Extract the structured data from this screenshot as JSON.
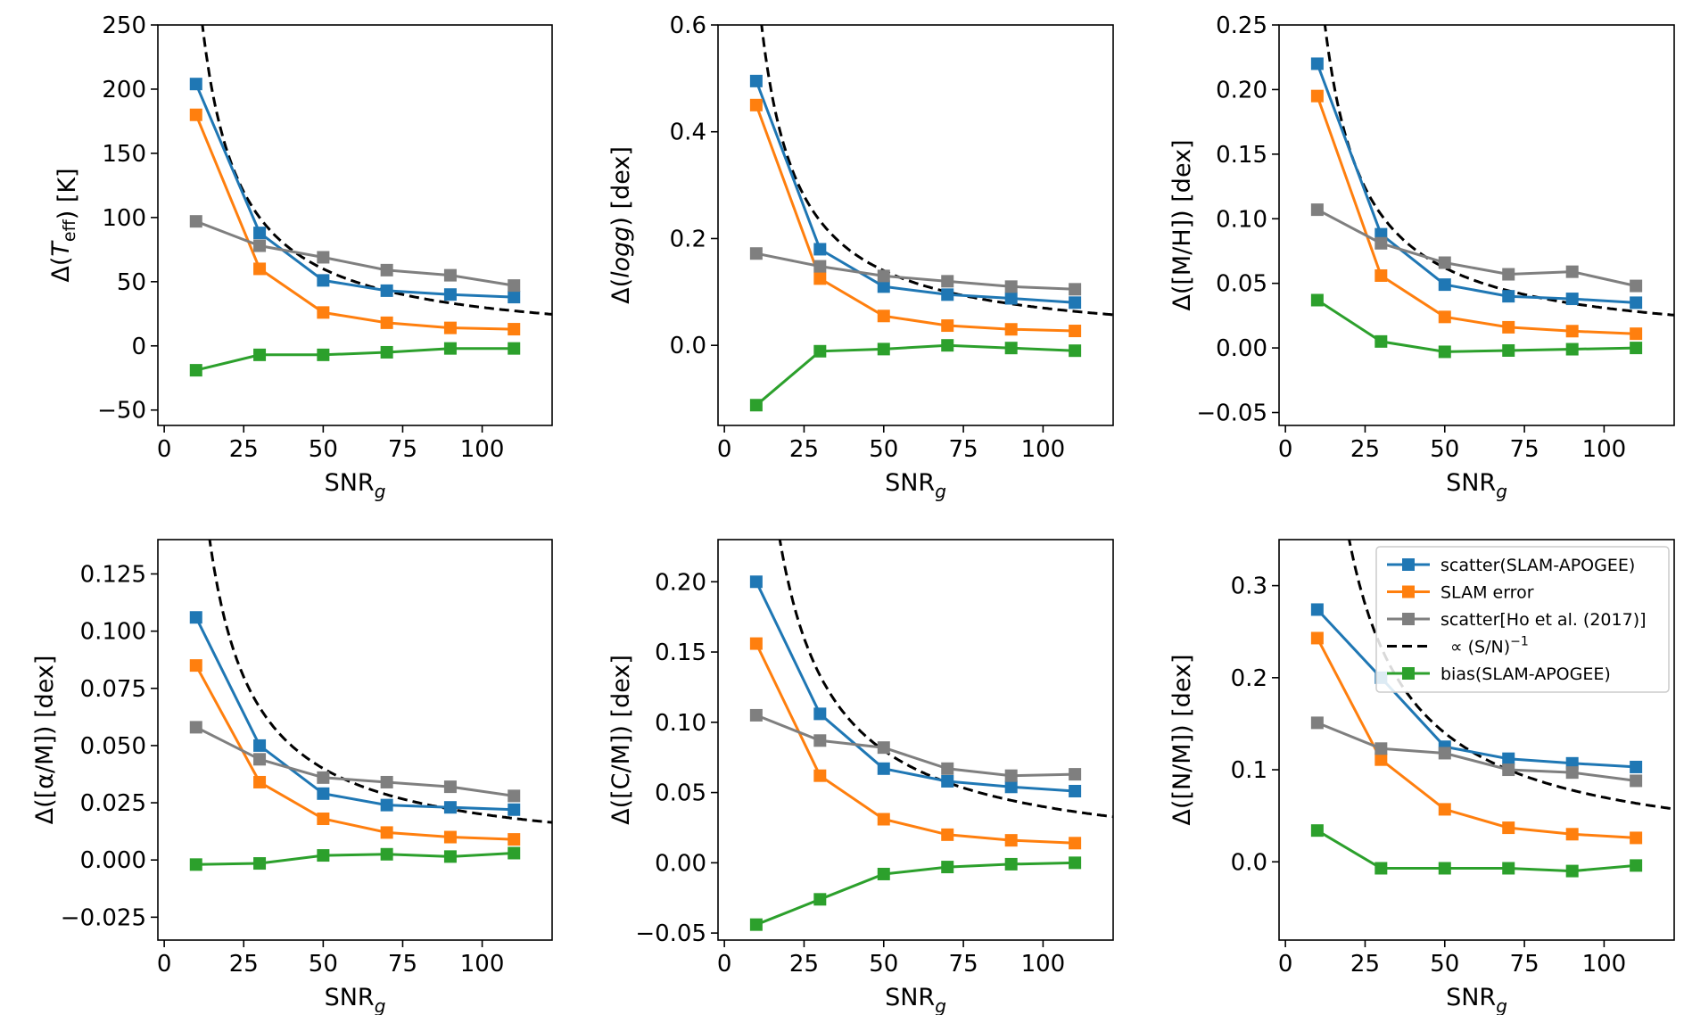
{
  "legend": {
    "placement": "upper right of last panel",
    "entries": [
      {
        "label": "scatter(SLAM-APOGEE)",
        "series": "scatter"
      },
      {
        "label": "SLAM error",
        "series": "error"
      },
      {
        "label": "scatter[Ho et al. (2017)]",
        "series": "ho"
      },
      {
        "label": "∝ (S/N)",
        "label_sup": "−1",
        "series": "fit"
      },
      {
        "label": "bias(SLAM-APOGEE)",
        "series": "bias"
      }
    ]
  },
  "colors": {
    "scatter": "#1f77b4",
    "error": "#ff7f0e",
    "ho": "#7f7f7f",
    "fit": "#000000",
    "bias": "#2ca02c"
  },
  "chart_data": [
    {
      "type": "line",
      "xlabel": "SNR",
      "xlabel_sub": "g",
      "ylabel_parts": [
        {
          "t": "Δ("
        },
        {
          "t": "T",
          "style": "italic"
        },
        {
          "t": "eff",
          "sub": true
        },
        {
          "t": ") [K]"
        }
      ],
      "xlim": [
        -2,
        122
      ],
      "ylim": [
        -62,
        250
      ],
      "xticks": [
        0,
        25,
        50,
        75,
        100
      ],
      "xtick_labels": [
        "0",
        "25",
        "50",
        "75",
        "100"
      ],
      "yticks": [
        -50,
        0,
        50,
        100,
        150,
        200,
        250
      ],
      "ytick_labels": [
        "−50",
        "0",
        "50",
        "100",
        "150",
        "200",
        "250"
      ],
      "x": [
        10,
        30,
        50,
        70,
        90,
        110
      ],
      "series": [
        {
          "key": "scatter",
          "values": [
            204,
            88,
            51,
            43,
            40,
            38
          ]
        },
        {
          "key": "error",
          "values": [
            180,
            60,
            26,
            18,
            14,
            13
          ]
        },
        {
          "key": "ho",
          "values": [
            97,
            78,
            69,
            59,
            55,
            47
          ]
        },
        {
          "key": "bias",
          "values": [
            -19,
            -7,
            -7,
            -5,
            -2,
            -2
          ]
        }
      ],
      "fit_k": 3000
    },
    {
      "type": "line",
      "xlabel": "SNR",
      "xlabel_sub": "g",
      "ylabel_parts": [
        {
          "t": "Δ("
        },
        {
          "t": "logg",
          "style": "italic"
        },
        {
          "t": ") [dex]"
        }
      ],
      "xlim": [
        -2,
        122
      ],
      "ylim": [
        -0.15,
        0.6
      ],
      "xticks": [
        0,
        25,
        50,
        75,
        100
      ],
      "xtick_labels": [
        "0",
        "25",
        "50",
        "75",
        "100"
      ],
      "yticks": [
        0.0,
        0.2,
        0.4,
        0.6
      ],
      "ytick_labels": [
        "0.0",
        "0.2",
        "0.4",
        "0.6"
      ],
      "x": [
        10,
        30,
        50,
        70,
        90,
        110
      ],
      "series": [
        {
          "key": "scatter",
          "values": [
            0.495,
            0.18,
            0.11,
            0.095,
            0.088,
            0.08
          ]
        },
        {
          "key": "error",
          "values": [
            0.45,
            0.125,
            0.055,
            0.037,
            0.03,
            0.027
          ]
        },
        {
          "key": "ho",
          "values": [
            0.172,
            0.148,
            0.13,
            0.12,
            0.11,
            0.105
          ]
        },
        {
          "key": "bias",
          "values": [
            -0.112,
            -0.011,
            -0.007,
            0.0,
            -0.005,
            -0.01
          ]
        }
      ],
      "fit_k": 7.0
    },
    {
      "type": "line",
      "xlabel": "SNR",
      "xlabel_sub": "g",
      "ylabel_parts": [
        {
          "t": "Δ([M/H]) [dex]"
        }
      ],
      "xlim": [
        -2,
        122
      ],
      "ylim": [
        -0.06,
        0.25
      ],
      "xticks": [
        0,
        25,
        50,
        75,
        100
      ],
      "xtick_labels": [
        "0",
        "25",
        "50",
        "75",
        "100"
      ],
      "yticks": [
        -0.05,
        0.0,
        0.05,
        0.1,
        0.15,
        0.2,
        0.25
      ],
      "ytick_labels": [
        "−0.05",
        "0.00",
        "0.05",
        "0.10",
        "0.15",
        "0.20",
        "0.25"
      ],
      "x": [
        10,
        30,
        50,
        70,
        90,
        110
      ],
      "series": [
        {
          "key": "scatter",
          "values": [
            0.22,
            0.088,
            0.049,
            0.04,
            0.038,
            0.035
          ]
        },
        {
          "key": "error",
          "values": [
            0.195,
            0.056,
            0.024,
            0.016,
            0.013,
            0.011
          ]
        },
        {
          "key": "ho",
          "values": [
            0.107,
            0.081,
            0.066,
            0.057,
            0.059,
            0.048
          ]
        },
        {
          "key": "bias",
          "values": [
            0.037,
            0.005,
            -0.003,
            -0.002,
            -0.001,
            0.0
          ]
        }
      ],
      "fit_k": 3.1
    },
    {
      "type": "line",
      "xlabel": "SNR",
      "xlabel_sub": "g",
      "ylabel_parts": [
        {
          "t": "Δ([α/M]) [dex]"
        }
      ],
      "xlim": [
        -2,
        122
      ],
      "ylim": [
        -0.035,
        0.14
      ],
      "xticks": [
        0,
        25,
        50,
        75,
        100
      ],
      "xtick_labels": [
        "0",
        "25",
        "50",
        "75",
        "100"
      ],
      "yticks": [
        -0.025,
        0.0,
        0.025,
        0.05,
        0.075,
        0.1,
        0.125
      ],
      "ytick_labels": [
        "−0.025",
        "0.000",
        "0.025",
        "0.050",
        "0.075",
        "0.100",
        "0.125"
      ],
      "x": [
        10,
        30,
        50,
        70,
        90,
        110
      ],
      "series": [
        {
          "key": "scatter",
          "values": [
            0.106,
            0.05,
            0.029,
            0.024,
            0.023,
            0.022
          ]
        },
        {
          "key": "error",
          "values": [
            0.085,
            0.034,
            0.018,
            0.012,
            0.01,
            0.009
          ]
        },
        {
          "key": "ho",
          "values": [
            0.058,
            0.044,
            0.036,
            0.034,
            0.032,
            0.028
          ]
        },
        {
          "key": "bias",
          "values": [
            -0.002,
            -0.0015,
            0.002,
            0.0025,
            0.0015,
            0.003
          ]
        }
      ],
      "fit_k": 2.0
    },
    {
      "type": "line",
      "xlabel": "SNR",
      "xlabel_sub": "g",
      "ylabel_parts": [
        {
          "t": "Δ([C/M]) [dex]"
        }
      ],
      "xlim": [
        -2,
        122
      ],
      "ylim": [
        -0.055,
        0.23
      ],
      "xticks": [
        0,
        25,
        50,
        75,
        100
      ],
      "xtick_labels": [
        "0",
        "25",
        "50",
        "75",
        "100"
      ],
      "yticks": [
        -0.05,
        0.0,
        0.05,
        0.1,
        0.15,
        0.2
      ],
      "ytick_labels": [
        "−0.05",
        "0.00",
        "0.05",
        "0.10",
        "0.15",
        "0.20"
      ],
      "x": [
        10,
        30,
        50,
        70,
        90,
        110
      ],
      "series": [
        {
          "key": "scatter",
          "values": [
            0.2,
            0.106,
            0.067,
            0.058,
            0.054,
            0.051
          ]
        },
        {
          "key": "error",
          "values": [
            0.156,
            0.062,
            0.031,
            0.02,
            0.016,
            0.014
          ]
        },
        {
          "key": "ho",
          "values": [
            0.105,
            0.087,
            0.082,
            0.067,
            0.062,
            0.063
          ]
        },
        {
          "key": "bias",
          "values": [
            -0.044,
            -0.026,
            -0.008,
            -0.003,
            -0.001,
            0.0
          ]
        }
      ],
      "fit_k": 4.0
    },
    {
      "type": "line",
      "xlabel": "SNR",
      "xlabel_sub": "g",
      "ylabel_parts": [
        {
          "t": "Δ([N/M]) [dex]"
        }
      ],
      "xlim": [
        -2,
        122
      ],
      "ylim": [
        -0.085,
        0.35
      ],
      "xticks": [
        0,
        25,
        50,
        75,
        100
      ],
      "xtick_labels": [
        "0",
        "25",
        "50",
        "75",
        "100"
      ],
      "yticks": [
        0.0,
        0.1,
        0.2,
        0.3
      ],
      "ytick_labels": [
        "0.0",
        "0.1",
        "0.2",
        "0.3"
      ],
      "x": [
        10,
        30,
        50,
        70,
        90,
        110
      ],
      "series": [
        {
          "key": "scatter",
          "values": [
            0.274,
            0.2,
            0.125,
            0.112,
            0.107,
            0.103
          ]
        },
        {
          "key": "error",
          "values": [
            0.243,
            0.111,
            0.057,
            0.037,
            0.03,
            0.026
          ]
        },
        {
          "key": "ho",
          "values": [
            0.151,
            0.123,
            0.118,
            0.1,
            0.097,
            0.088
          ]
        },
        {
          "key": "bias",
          "values": [
            0.034,
            -0.007,
            -0.007,
            -0.007,
            -0.01,
            -0.004
          ]
        }
      ],
      "fit_k": 7.0
    }
  ]
}
